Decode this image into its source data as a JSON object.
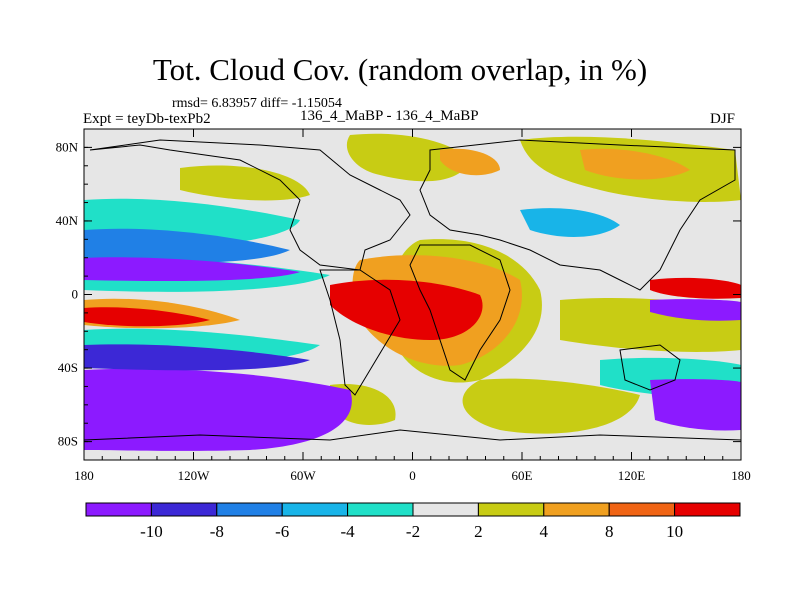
{
  "title": "Tot. Cloud Cov. (random overlap, in %)",
  "stats": "rmsd= 6.83957 diff= -1.15054",
  "left_label": "Expt = teyDb-texPb2",
  "center_label": "136_4_MaBP - 136_4_MaBP",
  "right_label": "DJF",
  "map": {
    "lon_range": [
      -180,
      180
    ],
    "lat_range": [
      -90,
      90
    ],
    "lat_ticks": [
      {
        "lat": 80,
        "label": "80N"
      },
      {
        "lat": 40,
        "label": "40N"
      },
      {
        "lat": 0,
        "label": "0"
      },
      {
        "lat": -40,
        "label": "40S"
      },
      {
        "lat": -80,
        "label": "80S"
      }
    ],
    "lon_ticks": [
      {
        "lon": -180,
        "label": "180"
      },
      {
        "lon": -120,
        "label": "120W"
      },
      {
        "lon": -60,
        "label": "60W"
      },
      {
        "lon": 0,
        "label": "0"
      },
      {
        "lon": 60,
        "label": "60E"
      },
      {
        "lon": 120,
        "label": "120E"
      },
      {
        "lon": 180,
        "label": "180"
      }
    ],
    "background_color": "#e6e6e6",
    "coastline_color": "#000000"
  },
  "colorbar": {
    "colors": [
      "#8c1aff",
      "#3c28d6",
      "#2080e6",
      "#18b4e8",
      "#20e0c8",
      "#e6e6e6",
      "#c8cc14",
      "#f0a020",
      "#f06414",
      "#e60000"
    ],
    "labels": [
      {
        "between": 1,
        "text": "-10"
      },
      {
        "between": 2,
        "text": "-8"
      },
      {
        "between": 3,
        "text": "-6"
      },
      {
        "between": 4,
        "text": "-4"
      },
      {
        "between": 5,
        "text": "-2"
      },
      {
        "between": 6,
        "text": "2"
      },
      {
        "between": 7,
        "text": "4"
      },
      {
        "between": 8,
        "text": "8"
      },
      {
        "between": 9,
        "text": "10"
      }
    ]
  }
}
